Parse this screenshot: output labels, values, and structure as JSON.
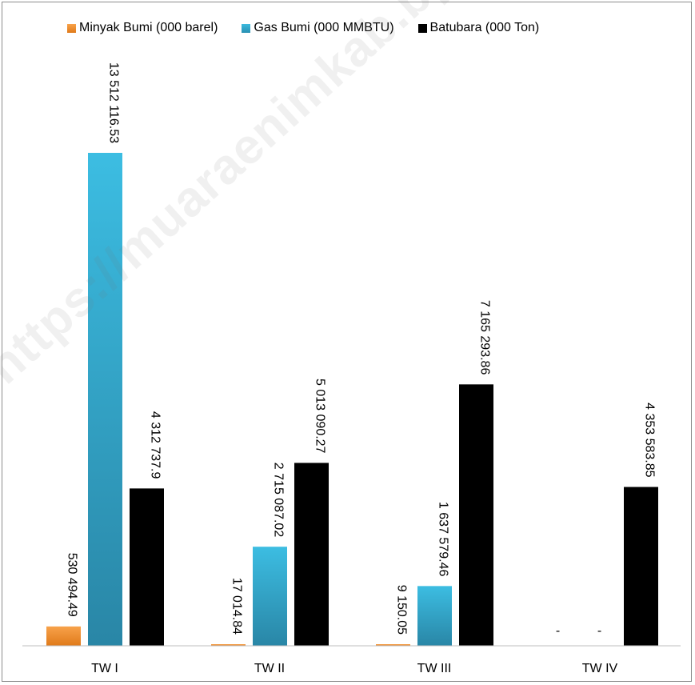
{
  "chart_data": {
    "type": "bar",
    "categories": [
      "TW I",
      "TW II",
      "TW III",
      "TW IV"
    ],
    "series": [
      {
        "name": "Minyak Bumi (000 barel)",
        "values": [
          530494.49,
          17014.84,
          9150.05,
          null
        ],
        "labels": [
          "530 494.49",
          "17 014.84",
          "9 150.05",
          "-"
        ],
        "color": "#f08a24"
      },
      {
        "name": "Gas Bumi (000 MMBTU)",
        "values": [
          13512116.53,
          2715087.02,
          1637579.46,
          null
        ],
        "labels": [
          "13 512 116.53",
          "2 715 087.02",
          "1 637 579.46",
          "-"
        ],
        "color": "#2fa6c9"
      },
      {
        "name": "Batubara (000 Ton)",
        "values": [
          4312737.9,
          5013090.27,
          7165293.86,
          4353583.85
        ],
        "labels": [
          "4 312 737.9",
          "5 013 090.27",
          "7 165 293.86",
          "4 353 583.85"
        ],
        "color": "#000000"
      }
    ],
    "ylim": [
      0,
      13512116.53
    ],
    "legend_position": "top",
    "grid": false
  },
  "watermark": "https://muaraenimkab.bps.go.id"
}
